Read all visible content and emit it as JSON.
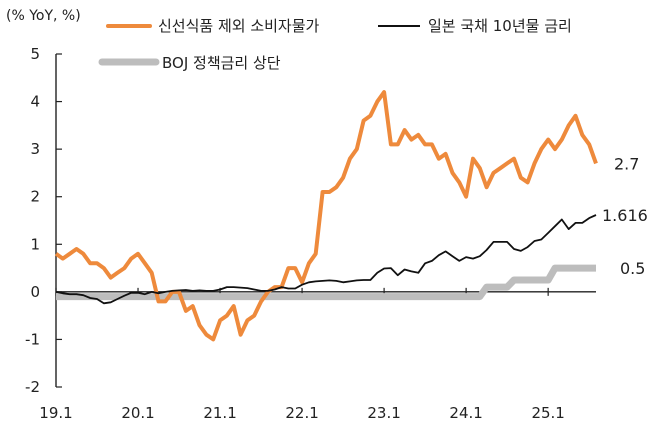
{
  "chart_data": {
    "type": "line",
    "unit_label": "(% YoY, %)",
    "title": "",
    "xlabel": "",
    "ylabel": "",
    "ylim": [
      -2,
      5
    ],
    "yticks": [
      "-2",
      "-1",
      "0",
      "1",
      "2",
      "3",
      "4",
      "5"
    ],
    "xticks": [
      {
        "label": "19.1",
        "x": "2019-01"
      },
      {
        "label": "20.1",
        "x": "2020-01"
      },
      {
        "label": "21.1",
        "x": "2021-01"
      },
      {
        "label": "22.1",
        "x": "2022-01"
      },
      {
        "label": "23.1",
        "x": "2023-01"
      },
      {
        "label": "24.1",
        "x": "2024-01"
      },
      {
        "label": "25.1",
        "x": "2025-01"
      }
    ],
    "legend_placement": "top",
    "series": [
      {
        "name": "신선식품 제외 소비자물가",
        "color": "#EE8A3C",
        "end_label": "2.7",
        "points": [
          [
            "2019-01",
            0.8
          ],
          [
            "2019-02",
            0.7
          ],
          [
            "2019-03",
            0.8
          ],
          [
            "2019-04",
            0.9
          ],
          [
            "2019-05",
            0.8
          ],
          [
            "2019-06",
            0.6
          ],
          [
            "2019-07",
            0.6
          ],
          [
            "2019-08",
            0.5
          ],
          [
            "2019-09",
            0.3
          ],
          [
            "2019-10",
            0.4
          ],
          [
            "2019-11",
            0.5
          ],
          [
            "2019-12",
            0.7
          ],
          [
            "2020-01",
            0.8
          ],
          [
            "2020-02",
            0.6
          ],
          [
            "2020-03",
            0.4
          ],
          [
            "2020-04",
            -0.2
          ],
          [
            "2020-05",
            -0.2
          ],
          [
            "2020-06",
            0.0
          ],
          [
            "2020-07",
            0.0
          ],
          [
            "2020-08",
            -0.4
          ],
          [
            "2020-09",
            -0.3
          ],
          [
            "2020-10",
            -0.7
          ],
          [
            "2020-11",
            -0.9
          ],
          [
            "2020-12",
            -1.0
          ],
          [
            "2021-01",
            -0.6
          ],
          [
            "2021-02",
            -0.5
          ],
          [
            "2021-03",
            -0.3
          ],
          [
            "2021-04",
            -0.9
          ],
          [
            "2021-05",
            -0.6
          ],
          [
            "2021-06",
            -0.5
          ],
          [
            "2021-07",
            -0.2
          ],
          [
            "2021-08",
            0.0
          ],
          [
            "2021-09",
            0.1
          ],
          [
            "2021-10",
            0.1
          ],
          [
            "2021-11",
            0.5
          ],
          [
            "2021-12",
            0.5
          ],
          [
            "2022-01",
            0.2
          ],
          [
            "2022-02",
            0.6
          ],
          [
            "2022-03",
            0.8
          ],
          [
            "2022-04",
            2.1
          ],
          [
            "2022-05",
            2.1
          ],
          [
            "2022-06",
            2.2
          ],
          [
            "2022-07",
            2.4
          ],
          [
            "2022-08",
            2.8
          ],
          [
            "2022-09",
            3.0
          ],
          [
            "2022-10",
            3.6
          ],
          [
            "2022-11",
            3.7
          ],
          [
            "2022-12",
            4.0
          ],
          [
            "2023-01",
            4.2
          ],
          [
            "2023-02",
            3.1
          ],
          [
            "2023-03",
            3.1
          ],
          [
            "2023-04",
            3.4
          ],
          [
            "2023-05",
            3.2
          ],
          [
            "2023-06",
            3.3
          ],
          [
            "2023-07",
            3.1
          ],
          [
            "2023-08",
            3.1
          ],
          [
            "2023-09",
            2.8
          ],
          [
            "2023-10",
            2.9
          ],
          [
            "2023-11",
            2.5
          ],
          [
            "2023-12",
            2.3
          ],
          [
            "2024-01",
            2.0
          ],
          [
            "2024-02",
            2.8
          ],
          [
            "2024-03",
            2.6
          ],
          [
            "2024-04",
            2.2
          ],
          [
            "2024-05",
            2.5
          ],
          [
            "2024-06",
            2.6
          ],
          [
            "2024-07",
            2.7
          ],
          [
            "2024-08",
            2.8
          ],
          [
            "2024-09",
            2.4
          ],
          [
            "2024-10",
            2.3
          ],
          [
            "2024-11",
            2.7
          ],
          [
            "2024-12",
            3.0
          ],
          [
            "2025-01",
            3.2
          ],
          [
            "2025-02",
            3.0
          ],
          [
            "2025-03",
            3.2
          ],
          [
            "2025-04",
            3.5
          ],
          [
            "2025-05",
            3.7
          ],
          [
            "2025-06",
            3.3
          ],
          [
            "2025-07",
            3.1
          ],
          [
            "2025-08",
            2.7
          ]
        ]
      },
      {
        "name": "일본 국채 10년물 금리",
        "color": "#111111",
        "end_label": "1.616",
        "points": [
          [
            "2019-01",
            0.0
          ],
          [
            "2019-02",
            -0.03
          ],
          [
            "2019-03",
            -0.05
          ],
          [
            "2019-04",
            -0.05
          ],
          [
            "2019-05",
            -0.07
          ],
          [
            "2019-06",
            -0.13
          ],
          [
            "2019-07",
            -0.15
          ],
          [
            "2019-08",
            -0.24
          ],
          [
            "2019-09",
            -0.22
          ],
          [
            "2019-10",
            -0.15
          ],
          [
            "2019-11",
            -0.08
          ],
          [
            "2019-12",
            -0.02
          ],
          [
            "2020-01",
            -0.02
          ],
          [
            "2020-02",
            -0.05
          ],
          [
            "2020-03",
            0.0
          ],
          [
            "2020-04",
            -0.03
          ],
          [
            "2020-05",
            0.0
          ],
          [
            "2020-06",
            0.02
          ],
          [
            "2020-07",
            0.03
          ],
          [
            "2020-08",
            0.04
          ],
          [
            "2020-09",
            0.02
          ],
          [
            "2020-10",
            0.03
          ],
          [
            "2020-11",
            0.02
          ],
          [
            "2020-12",
            0.02
          ],
          [
            "2021-01",
            0.05
          ],
          [
            "2021-02",
            0.1
          ],
          [
            "2021-03",
            0.1
          ],
          [
            "2021-04",
            0.09
          ],
          [
            "2021-05",
            0.08
          ],
          [
            "2021-06",
            0.05
          ],
          [
            "2021-07",
            0.02
          ],
          [
            "2021-08",
            0.02
          ],
          [
            "2021-09",
            0.05
          ],
          [
            "2021-10",
            0.1
          ],
          [
            "2021-11",
            0.07
          ],
          [
            "2021-12",
            0.07
          ],
          [
            "2022-01",
            0.15
          ],
          [
            "2022-02",
            0.2
          ],
          [
            "2022-03",
            0.22
          ],
          [
            "2022-04",
            0.23
          ],
          [
            "2022-05",
            0.24
          ],
          [
            "2022-06",
            0.23
          ],
          [
            "2022-07",
            0.2
          ],
          [
            "2022-08",
            0.22
          ],
          [
            "2022-09",
            0.24
          ],
          [
            "2022-10",
            0.25
          ],
          [
            "2022-11",
            0.25
          ],
          [
            "2022-12",
            0.4
          ],
          [
            "2023-01",
            0.49
          ],
          [
            "2023-02",
            0.5
          ],
          [
            "2023-03",
            0.35
          ],
          [
            "2023-04",
            0.47
          ],
          [
            "2023-05",
            0.43
          ],
          [
            "2023-06",
            0.4
          ],
          [
            "2023-07",
            0.6
          ],
          [
            "2023-08",
            0.65
          ],
          [
            "2023-09",
            0.77
          ],
          [
            "2023-10",
            0.85
          ],
          [
            "2023-11",
            0.75
          ],
          [
            "2023-12",
            0.65
          ],
          [
            "2024-01",
            0.73
          ],
          [
            "2024-02",
            0.7
          ],
          [
            "2024-03",
            0.75
          ],
          [
            "2024-04",
            0.88
          ],
          [
            "2024-05",
            1.05
          ],
          [
            "2024-06",
            1.05
          ],
          [
            "2024-07",
            1.05
          ],
          [
            "2024-08",
            0.9
          ],
          [
            "2024-09",
            0.86
          ],
          [
            "2024-10",
            0.94
          ],
          [
            "2024-11",
            1.07
          ],
          [
            "2024-12",
            1.1
          ],
          [
            "2025-01",
            1.24
          ],
          [
            "2025-02",
            1.38
          ],
          [
            "2025-03",
            1.52
          ],
          [
            "2025-04",
            1.32
          ],
          [
            "2025-05",
            1.45
          ],
          [
            "2025-06",
            1.45
          ],
          [
            "2025-07",
            1.55
          ],
          [
            "2025-08",
            1.616
          ]
        ]
      },
      {
        "name": "BOJ 정책금리 상단",
        "color": "#BDBDBD",
        "end_label": "0.5",
        "points": [
          [
            "2019-01",
            -0.1
          ],
          [
            "2024-03",
            -0.1
          ],
          [
            "2024-04",
            0.1
          ],
          [
            "2024-07",
            0.1
          ],
          [
            "2024-08",
            0.25
          ],
          [
            "2025-01",
            0.25
          ],
          [
            "2025-02",
            0.5
          ],
          [
            "2025-08",
            0.5
          ]
        ]
      }
    ]
  }
}
